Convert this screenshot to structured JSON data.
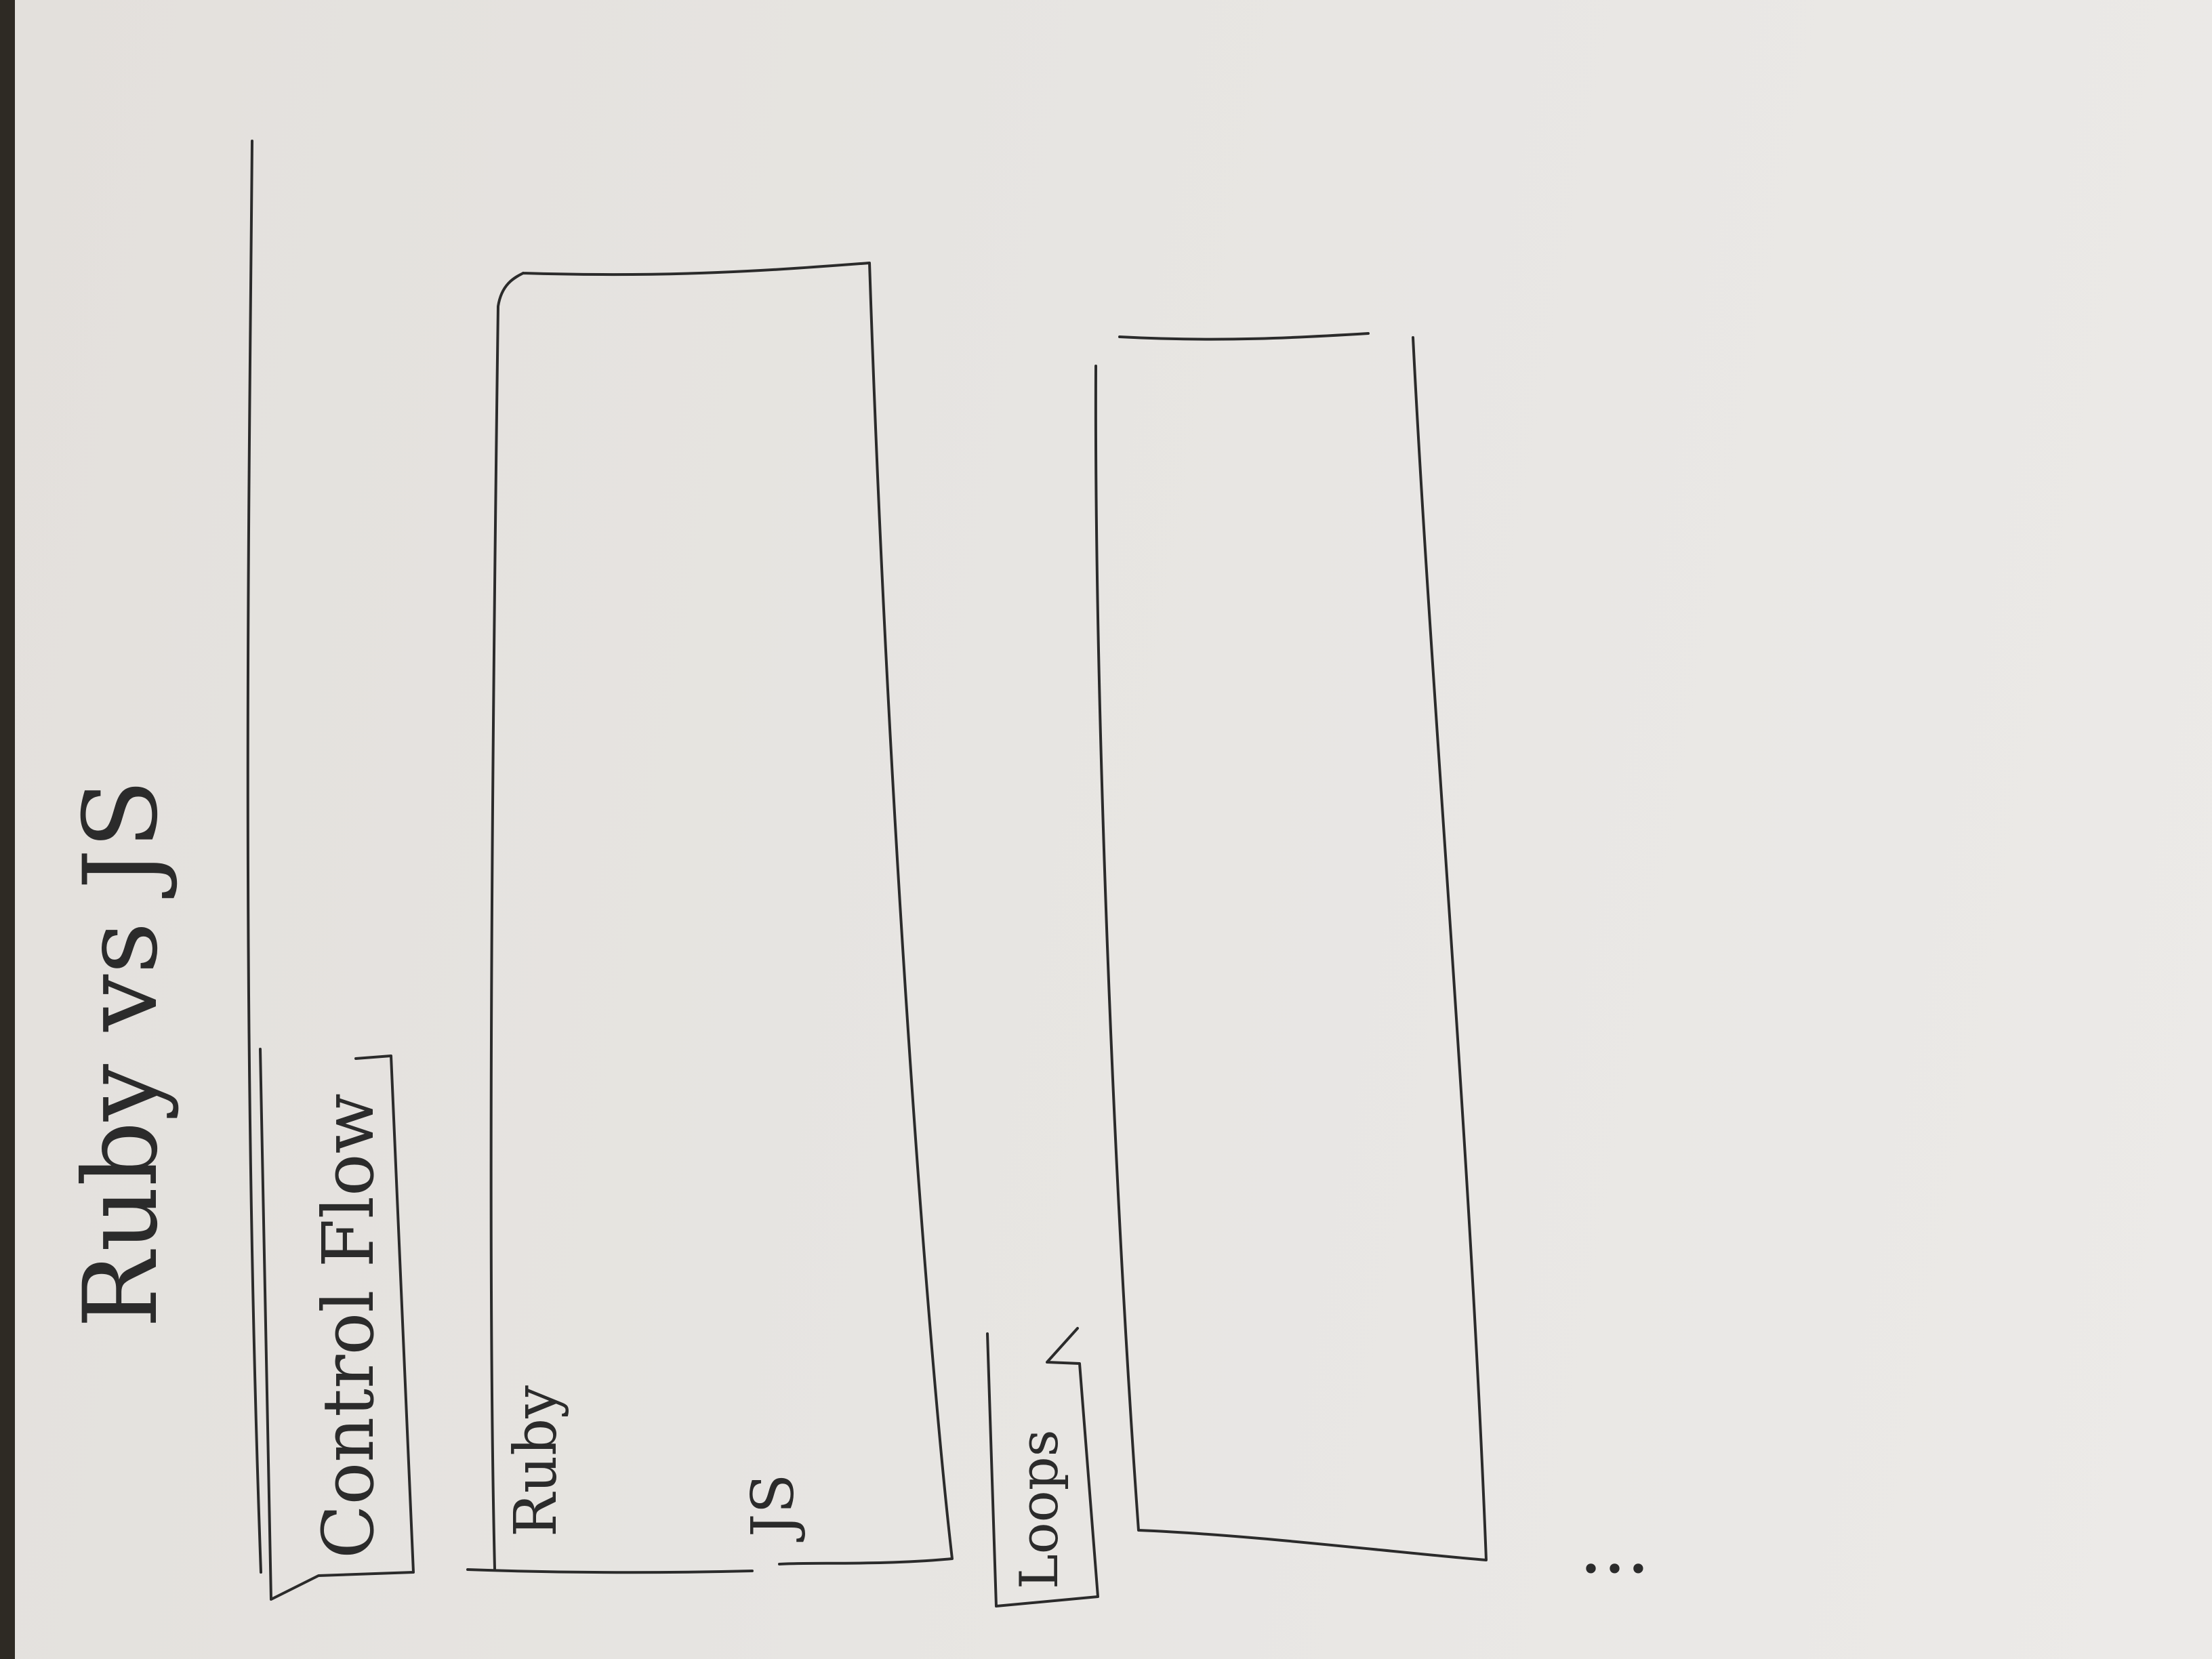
{
  "title": "Ruby vs JS",
  "tabs": [
    {
      "label": "Control Flow"
    },
    {
      "label": "Loops"
    }
  ],
  "panel_labels": {
    "ruby": "Ruby",
    "js": "JS"
  },
  "more_indicator": "...",
  "colors": {
    "paper": "#e7e5e2",
    "ink": "#2b2b2b"
  }
}
